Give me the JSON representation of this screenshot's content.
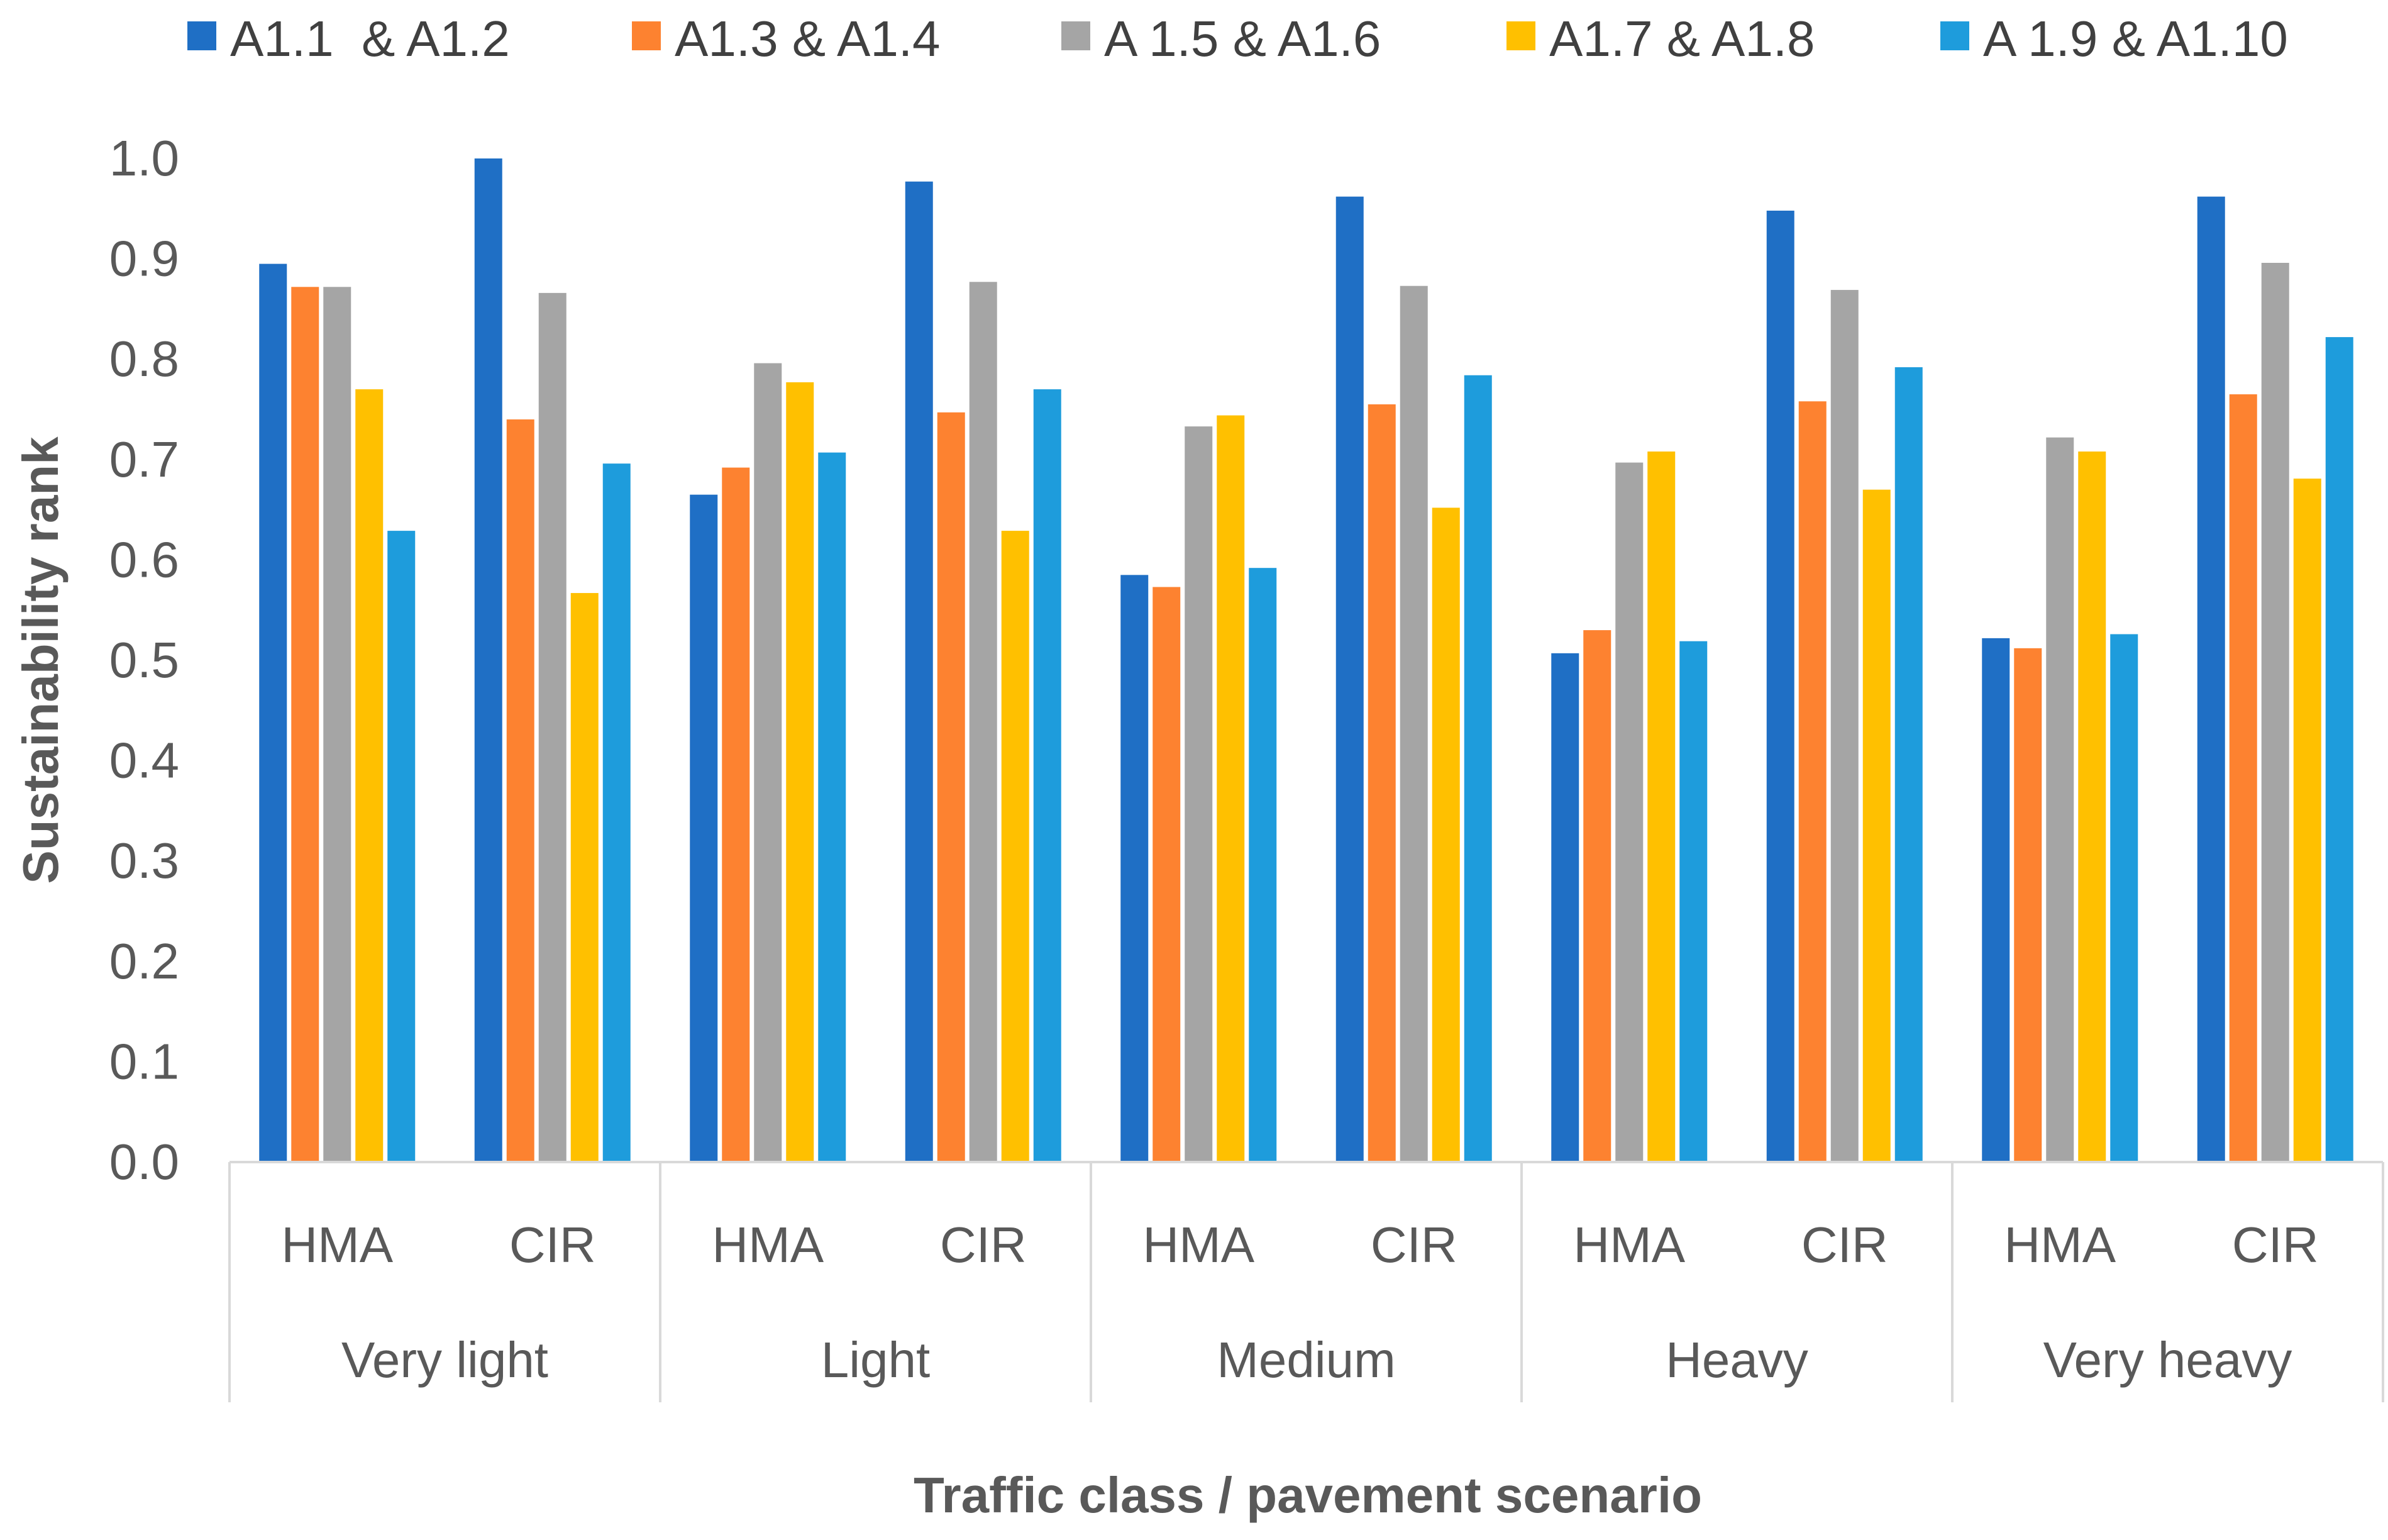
{
  "chart_data": {
    "type": "bar",
    "title": "",
    "xlabel": "Traffic class / pavement scenario",
    "ylabel": "Sustainability rank",
    "ylim": [
      0,
      1.0
    ],
    "yticks": [
      "0.0",
      "0.1",
      "0.2",
      "0.3",
      "0.4",
      "0.5",
      "0.6",
      "0.7",
      "0.8",
      "0.9",
      "1.0"
    ],
    "legend_position": "top",
    "grid": false,
    "groups": [
      "Very light",
      "Light",
      "Medium",
      "Heavy",
      "Very heavy"
    ],
    "subcategories": [
      "HMA",
      "CIR"
    ],
    "categories": [
      "Very light HMA",
      "Very light CIR",
      "Light HMA",
      "Light CIR",
      "Medium HMA",
      "Medium CIR",
      "Heavy HMA",
      "Heavy CIR",
      "Very heavy HMA",
      "Very heavy CIR"
    ],
    "series": [
      {
        "name": "A1.1  & A1.2",
        "color": "#1f6fc5",
        "values": [
          0.895,
          1.0,
          0.665,
          0.977,
          0.585,
          0.962,
          0.507,
          0.948,
          0.522,
          0.962
        ]
      },
      {
        "name": "A1.3 & A1.4",
        "color": "#fd8230",
        "values": [
          0.872,
          0.74,
          0.692,
          0.747,
          0.573,
          0.755,
          0.53,
          0.758,
          0.512,
          0.765
        ]
      },
      {
        "name": "A 1.5 & A1.6",
        "color": "#a5a5a5",
        "values": [
          0.872,
          0.866,
          0.796,
          0.877,
          0.733,
          0.873,
          0.697,
          0.869,
          0.722,
          0.896
        ]
      },
      {
        "name": "A1.7 & A1.8",
        "color": "#ffc000",
        "values": [
          0.77,
          0.567,
          0.777,
          0.629,
          0.744,
          0.652,
          0.708,
          0.67,
          0.708,
          0.681
        ]
      },
      {
        "name": "A 1.9 & A1.10",
        "color": "#1e9cdc",
        "values": [
          0.629,
          0.696,
          0.707,
          0.77,
          0.592,
          0.784,
          0.519,
          0.792,
          0.526,
          0.822
        ]
      }
    ]
  }
}
